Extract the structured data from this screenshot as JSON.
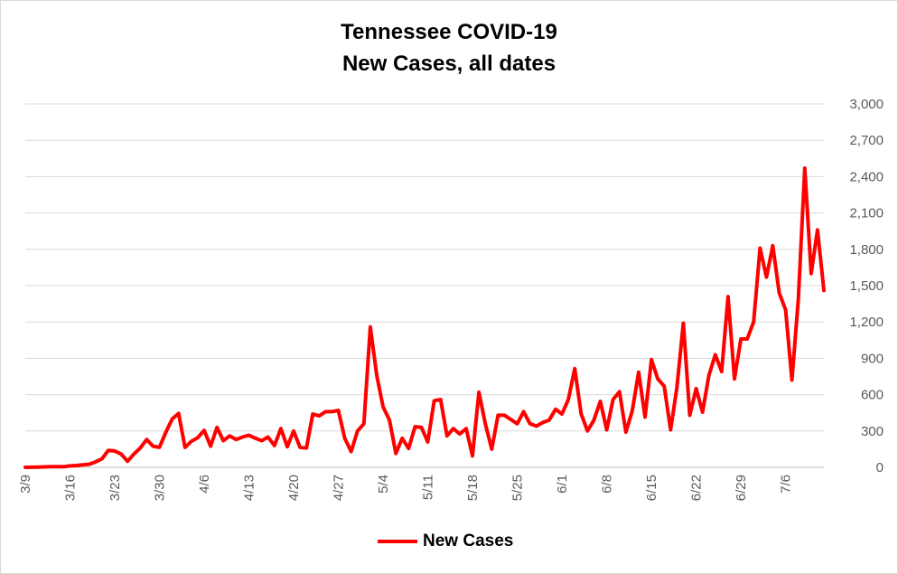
{
  "title_line1": "Tennessee COVID-19",
  "title_line2": "New Cases, all dates",
  "chart_data": {
    "type": "line",
    "title": "Tennessee COVID-19 New Cases, all dates",
    "ylim": [
      0,
      3000
    ],
    "yticks": [
      0,
      300,
      600,
      900,
      1200,
      1500,
      1800,
      2100,
      2400,
      2700,
      3000
    ],
    "ytick_labels": [
      "0",
      "300",
      "600",
      "900",
      "1,200",
      "1,500",
      "1,800",
      "2,100",
      "2,400",
      "2,700",
      "3,000"
    ],
    "y_axis_position": "right",
    "grid": true,
    "legend": "bottom",
    "xtick_labels": [
      "3/9",
      "3/16",
      "3/23",
      "3/30",
      "4/6",
      "4/13",
      "4/20",
      "4/27",
      "5/4",
      "5/11",
      "5/18",
      "5/25",
      "6/1",
      "6/8",
      "6/15",
      "6/22",
      "6/29",
      "7/6"
    ],
    "xtick_interval_days": 7,
    "color": "#ff0000",
    "series": [
      {
        "name": "New Cases",
        "x_start": "3/9",
        "values": [
          0,
          1,
          2,
          4,
          5,
          6,
          5,
          12,
          15,
          20,
          25,
          45,
          70,
          140,
          135,
          110,
          50,
          110,
          160,
          230,
          175,
          165,
          290,
          400,
          445,
          165,
          215,
          245,
          305,
          175,
          330,
          220,
          260,
          230,
          250,
          265,
          240,
          220,
          250,
          180,
          320,
          170,
          300,
          165,
          160,
          440,
          425,
          460,
          460,
          470,
          240,
          130,
          300,
          360,
          1160,
          760,
          500,
          390,
          115,
          240,
          155,
          335,
          330,
          210,
          550,
          560,
          260,
          320,
          275,
          320,
          95,
          620,
          360,
          150,
          430,
          430,
          395,
          360,
          460,
          360,
          340,
          370,
          390,
          480,
          440,
          560,
          815,
          440,
          300,
          390,
          545,
          310,
          560,
          625,
          290,
          465,
          785,
          415,
          890,
          730,
          670,
          310,
          660,
          1190,
          430,
          650,
          455,
          760,
          930,
          790,
          1410,
          730,
          1060,
          1060,
          1200,
          1810,
          1570,
          1830,
          1440,
          1300,
          720,
          1390,
          2470,
          1600,
          1960,
          1460
        ]
      }
    ]
  }
}
